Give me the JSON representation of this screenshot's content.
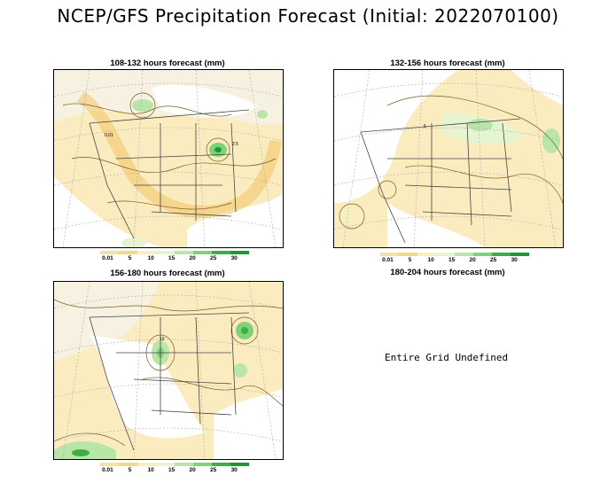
{
  "title": "NCEP/GFS Precipitation Forecast (Initial: 2022070100)",
  "panels": [
    {
      "label": "108-132 hours forecast (mm)"
    },
    {
      "label": "132-156 hours forecast (mm)"
    },
    {
      "label": "156-180 hours forecast (mm)"
    },
    {
      "label": "180-204 hours forecast (mm)",
      "message": "Entire Grid Undefined"
    }
  ],
  "legend": {
    "ticks": [
      "0.01",
      "5",
      "10",
      "15",
      "20",
      "25",
      "30"
    ],
    "colors": [
      "#f3e2a2",
      "#f5d883",
      "#f8eebe",
      "#e6f4d2",
      "#b9e6a8",
      "#80d279",
      "#3cb044",
      "#169b2c"
    ]
  },
  "contour_labels": [
    "0.01",
    "2.5",
    "5",
    "10"
  ]
}
